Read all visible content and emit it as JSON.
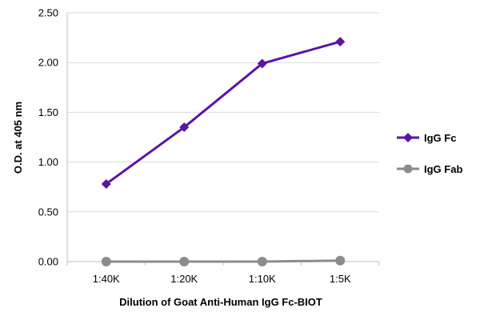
{
  "chart_data": {
    "type": "line",
    "title": "",
    "xlabel": "Dilution of Goat Anti-Human IgG Fc-BIOT",
    "ylabel": "O.D. at 405 nm",
    "categories": [
      "1:40K",
      "1:20K",
      "1:10K",
      "1:5K"
    ],
    "ylim": [
      0,
      2.5
    ],
    "yticks": [
      "0.00",
      "0.50",
      "1.00",
      "1.50",
      "2.00",
      "2.50"
    ],
    "grid": "horizontal",
    "legend_position": "right",
    "series": [
      {
        "name": "IgG Fc",
        "values": [
          0.78,
          1.35,
          1.99,
          2.21
        ],
        "color": "#5b14a6",
        "marker": "diamond"
      },
      {
        "name": "IgG Fab",
        "values": [
          0.0,
          0.0,
          0.0,
          0.01
        ],
        "color": "#8c8c8c",
        "marker": "circle"
      }
    ]
  }
}
